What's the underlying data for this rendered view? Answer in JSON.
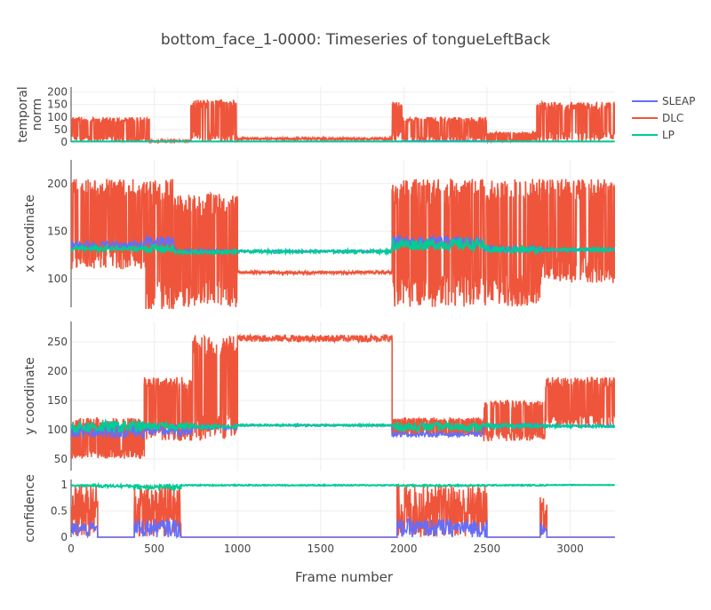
{
  "chart_data": {
    "type": "line",
    "title": "bottom_face_1-0000: Timeseries of tongueLeftBack",
    "xlabel": "Frame number",
    "xlim": [
      0,
      3270
    ],
    "x_ticks": [
      0,
      500,
      1000,
      1500,
      2000,
      2500,
      3000
    ],
    "grid": true,
    "legend_position": "right-top",
    "series": [
      {
        "name": "SLEAP",
        "color": "#636efa"
      },
      {
        "name": "DLC",
        "color": "#ef553b"
      },
      {
        "name": "LP",
        "color": "#00cc96"
      }
    ],
    "panels": [
      {
        "id": "temporal-norm",
        "ylabel": "temporal\nnorm",
        "ylim": [
          0,
          220
        ],
        "y_ticks": [
          0,
          50,
          100,
          150,
          200
        ],
        "segments": [
          {
            "x0": 0,
            "x1": 470,
            "SLEAP": [
              3,
              3
            ],
            "DLC": [
              0,
              100
            ],
            "LP": [
              2,
              2
            ]
          },
          {
            "x0": 470,
            "x1": 720,
            "SLEAP": [
              3,
              3
            ],
            "DLC": [
              0,
              8
            ],
            "LP": [
              2,
              2
            ]
          },
          {
            "x0": 720,
            "x1": 1000,
            "SLEAP": [
              3,
              3
            ],
            "DLC": [
              0,
              170
            ],
            "LP": [
              2,
              2
            ]
          },
          {
            "x0": 1000,
            "x1": 1930,
            "SLEAP": [
              3,
              3
            ],
            "DLC": [
              8,
              18
            ],
            "LP": [
              2,
              2
            ]
          },
          {
            "x0": 1930,
            "x1": 1990,
            "SLEAP": [
              3,
              3
            ],
            "DLC": [
              0,
              160
            ],
            "LP": [
              2,
              2
            ]
          },
          {
            "x0": 1990,
            "x1": 2500,
            "SLEAP": [
              3,
              6
            ],
            "DLC": [
              0,
              100
            ],
            "LP": [
              2,
              2
            ]
          },
          {
            "x0": 2500,
            "x1": 2800,
            "SLEAP": [
              3,
              3
            ],
            "DLC": [
              0,
              40
            ],
            "LP": [
              2,
              2
            ]
          },
          {
            "x0": 2800,
            "x1": 3270,
            "SLEAP": [
              3,
              3
            ],
            "DLC": [
              0,
              160
            ],
            "LP": [
              2,
              2
            ]
          }
        ]
      },
      {
        "id": "x-coordinate",
        "ylabel": "x coordinate",
        "ylim": [
          70,
          225
        ],
        "y_ticks": [
          100,
          150,
          200
        ],
        "segments": [
          {
            "x0": 0,
            "x1": 450,
            "SLEAP": [
              131,
              140
            ],
            "DLC": [
              110,
              205
            ],
            "LP": [
              129,
              134
            ]
          },
          {
            "x0": 450,
            "x1": 620,
            "SLEAP": [
              133,
              145
            ],
            "DLC": [
              65,
              205
            ],
            "LP": [
              127,
              136
            ]
          },
          {
            "x0": 620,
            "x1": 1000,
            "SLEAP": [
              127,
              131
            ],
            "DLC": [
              70,
              190
            ],
            "LP": [
              126,
              130
            ]
          },
          {
            "x0": 1000,
            "x1": 1930,
            "SLEAP": [
              128,
              130
            ],
            "DLC": [
              105,
              108
            ],
            "LP": [
              127,
              130
            ]
          },
          {
            "x0": 1930,
            "x1": 2480,
            "SLEAP": [
              133,
              145
            ],
            "DLC": [
              70,
              205
            ],
            "LP": [
              130,
              142
            ]
          },
          {
            "x0": 2480,
            "x1": 2830,
            "SLEAP": [
              128,
              135
            ],
            "DLC": [
              70,
              205
            ],
            "LP": [
              127,
              134
            ]
          },
          {
            "x0": 2830,
            "x1": 3270,
            "SLEAP": [
              129,
              132
            ],
            "DLC": [
              95,
              205
            ],
            "LP": [
              129,
              132
            ]
          }
        ]
      },
      {
        "id": "y-coordinate",
        "ylabel": "y coordinate",
        "ylim": [
          30,
          285
        ],
        "y_ticks": [
          50,
          100,
          150,
          200,
          250
        ],
        "segments": [
          {
            "x0": 0,
            "x1": 440,
            "SLEAP": [
              85,
              110
            ],
            "DLC": [
              50,
              120
            ],
            "LP": [
              95,
              115
            ]
          },
          {
            "x0": 440,
            "x1": 730,
            "SLEAP": [
              88,
              108
            ],
            "DLC": [
              80,
              190
            ],
            "LP": [
              100,
              112
            ]
          },
          {
            "x0": 730,
            "x1": 1000,
            "SLEAP": [
              100,
              108
            ],
            "DLC": [
              80,
              262
            ],
            "LP": [
              102,
              108
            ]
          },
          {
            "x0": 1000,
            "x1": 1930,
            "SLEAP": [
              106,
              109
            ],
            "DLC": [
              250,
              262
            ],
            "LP": [
              106,
              109
            ]
          },
          {
            "x0": 1930,
            "x1": 2480,
            "SLEAP": [
              88,
              96
            ],
            "DLC": [
              90,
              120
            ],
            "LP": [
              98,
              112
            ]
          },
          {
            "x0": 2480,
            "x1": 2850,
            "SLEAP": [
              104,
              110
            ],
            "DLC": [
              80,
              150
            ],
            "LP": [
              103,
              110
            ]
          },
          {
            "x0": 2850,
            "x1": 3270,
            "SLEAP": [
              104,
              108
            ],
            "DLC": [
              105,
              190
            ],
            "LP": [
              104,
              108
            ]
          }
        ]
      },
      {
        "id": "confidence",
        "ylabel": "confidence",
        "ylim": [
          0,
          1.1
        ],
        "y_ticks": [
          0,
          0.5,
          1
        ],
        "segments": [
          {
            "x0": 0,
            "x1": 160,
            "SLEAP": [
              0,
              0.3
            ],
            "DLC": [
              0,
              1
            ],
            "LP": [
              0.97,
              1
            ]
          },
          {
            "x0": 160,
            "x1": 380,
            "SLEAP": [
              0,
              0
            ],
            "DLC": [
              0,
              0
            ],
            "LP": [
              0.95,
              1
            ]
          },
          {
            "x0": 380,
            "x1": 660,
            "SLEAP": [
              0,
              0.35
            ],
            "DLC": [
              0,
              1
            ],
            "LP": [
              0.92,
              1
            ]
          },
          {
            "x0": 660,
            "x1": 1960,
            "SLEAP": [
              0,
              0
            ],
            "DLC": [
              0,
              0
            ],
            "LP": [
              0.98,
              1
            ]
          },
          {
            "x0": 1960,
            "x1": 2500,
            "SLEAP": [
              0,
              0.35
            ],
            "DLC": [
              0,
              1
            ],
            "LP": [
              0.97,
              1
            ]
          },
          {
            "x0": 2500,
            "x1": 2820,
            "SLEAP": [
              0,
              0
            ],
            "DLC": [
              0,
              0
            ],
            "LP": [
              0.98,
              1
            ]
          },
          {
            "x0": 2820,
            "x1": 2860,
            "SLEAP": [
              0,
              0.3
            ],
            "DLC": [
              0,
              1
            ],
            "LP": [
              0.98,
              1
            ]
          },
          {
            "x0": 2860,
            "x1": 3270,
            "SLEAP": [
              0,
              0
            ],
            "DLC": [
              0,
              0
            ],
            "LP": [
              0.99,
              1
            ]
          }
        ]
      }
    ]
  }
}
